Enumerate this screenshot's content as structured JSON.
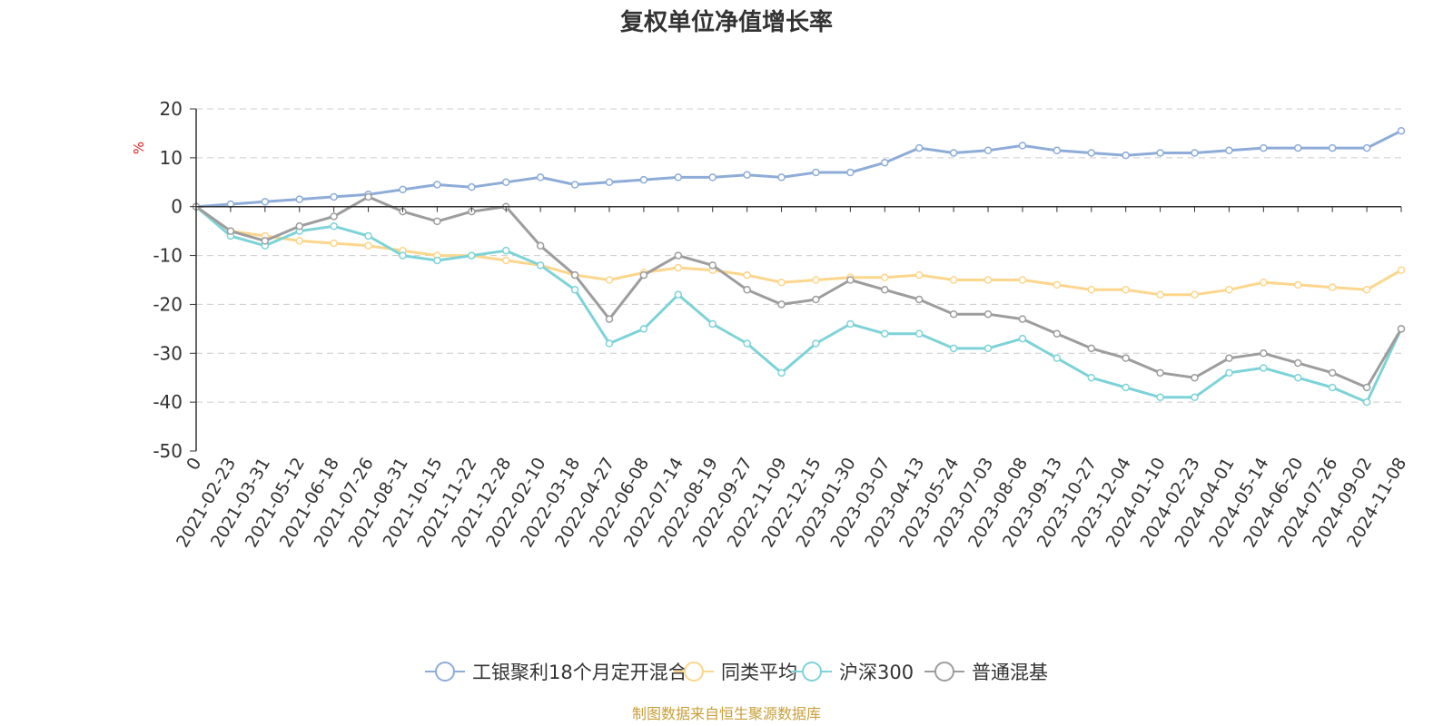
{
  "chart_data": {
    "type": "line",
    "title": "复权单位净值增长率",
    "ylabel": "%",
    "ylim": [
      -50,
      20
    ],
    "yticks": [
      20,
      10,
      0,
      -10,
      -20,
      -30,
      -40,
      -50
    ],
    "grid": true,
    "legend_position": "bottom",
    "x": [
      "0",
      "2021-02-23",
      "2021-03-31",
      "2021-05-12",
      "2021-06-18",
      "2021-07-26",
      "2021-08-31",
      "2021-10-15",
      "2021-11-22",
      "2021-12-28",
      "2022-02-10",
      "2022-03-18",
      "2022-04-27",
      "2022-06-08",
      "2022-07-14",
      "2022-08-19",
      "2022-09-27",
      "2022-11-09",
      "2022-12-15",
      "2023-01-30",
      "2023-03-07",
      "2023-04-13",
      "2023-05-24",
      "2023-07-03",
      "2023-08-08",
      "2023-09-13",
      "2023-10-27",
      "2023-12-04",
      "2024-01-10",
      "2024-02-23",
      "2024-04-01",
      "2024-05-14",
      "2024-06-20",
      "2024-07-26",
      "2024-09-02",
      "2024-11-08"
    ],
    "series": [
      {
        "name": "工银聚利18个月定开混合A",
        "color": "#8eacd8",
        "values": [
          0,
          0.5,
          1,
          1.5,
          2,
          2.5,
          3.5,
          4.5,
          4,
          5,
          6,
          4.5,
          5,
          5.5,
          6,
          6,
          6.5,
          6,
          7,
          7,
          9,
          12,
          11,
          11.5,
          12.5,
          11.5,
          11,
          10.5,
          11,
          11,
          11.5,
          12,
          12,
          12,
          12,
          15.5
        ]
      },
      {
        "name": "同类平均",
        "color": "#fcd68c",
        "values": [
          0,
          -5,
          -6,
          -7,
          -7.5,
          -8,
          -9,
          -10,
          -10,
          -11,
          -12,
          -14,
          -15,
          -13.5,
          -12.5,
          -13,
          -14,
          -15.5,
          -15,
          -14.5,
          -14.5,
          -14,
          -15,
          -15,
          -15,
          -16,
          -17,
          -17,
          -18,
          -18,
          -17,
          -15.5,
          -16,
          -16.5,
          -17,
          -13
        ]
      },
      {
        "name": "沪深300",
        "color": "#7dd3d8",
        "values": [
          0,
          -6,
          -8,
          -5,
          -4,
          -6,
          -10,
          -11,
          -10,
          -9,
          -12,
          -17,
          -28,
          -25,
          -18,
          -24,
          -28,
          -34,
          -28,
          -24,
          -26,
          -26,
          -29,
          -29,
          -27,
          -31,
          -35,
          -37,
          -39,
          -39,
          -34,
          -33,
          -35,
          -37,
          -40,
          -25
        ]
      },
      {
        "name": "普通混基",
        "color": "#9d9d9d",
        "values": [
          0,
          -5,
          -7,
          -4,
          -2,
          2,
          -1,
          -3,
          -1,
          0,
          -8,
          -14,
          -23,
          -14,
          -10,
          -12,
          -17,
          -20,
          -19,
          -15,
          -17,
          -19,
          -22,
          -22,
          -23,
          -26,
          -29,
          -31,
          -34,
          -35,
          -31,
          -30,
          -32,
          -34,
          -37,
          -25
        ]
      }
    ]
  },
  "legend": {
    "items": [
      {
        "label": "工银聚利18个月定开混合A",
        "color": "#8eacd8"
      },
      {
        "label": "同类平均",
        "color": "#fcd68c"
      },
      {
        "label": "沪深300",
        "color": "#7dd3d8"
      },
      {
        "label": "普通混基",
        "color": "#9d9d9d"
      }
    ]
  },
  "source_text": "制图数据来自恒生聚源数据库",
  "colors": {
    "unit": "#e02020",
    "source": "#c8a03c",
    "axis": "#333333",
    "grid": "#cccccc"
  }
}
